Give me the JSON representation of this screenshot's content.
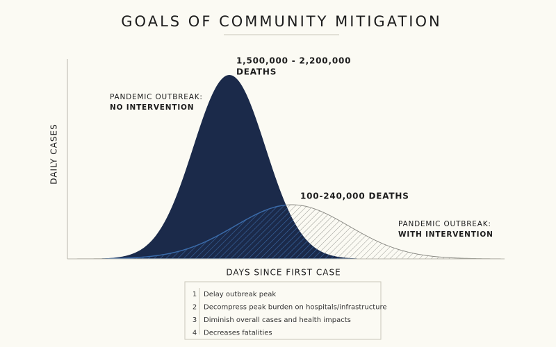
{
  "title": "GOALS OF COMMUNITY MITIGATION",
  "axes": {
    "y_label": "DAILY CASES",
    "x_label": "DAYS SINCE FIRST CASE"
  },
  "annotations": {
    "peak_no_intervention": [
      "1,500,000 - 2,200,000",
      "DEATHS"
    ],
    "no_intervention": [
      "PANDEMIC OUTBREAK:",
      "NO INTERVENTION"
    ],
    "peak_with_intervention": "100-240,000 DEATHS",
    "with_intervention": [
      "PANDEMIC OUTBREAK:",
      "WITH INTERVENTION"
    ]
  },
  "legend": {
    "items": [
      {
        "number": 1,
        "text": "Delay outbreak peak"
      },
      {
        "number": 2,
        "text": "Decompress peak burden on hospitals/infrastructure"
      },
      {
        "number": 3,
        "text": "Diminish overall cases and health impacts"
      },
      {
        "number": 4,
        "text": "Decreases fatalities"
      }
    ]
  }
}
